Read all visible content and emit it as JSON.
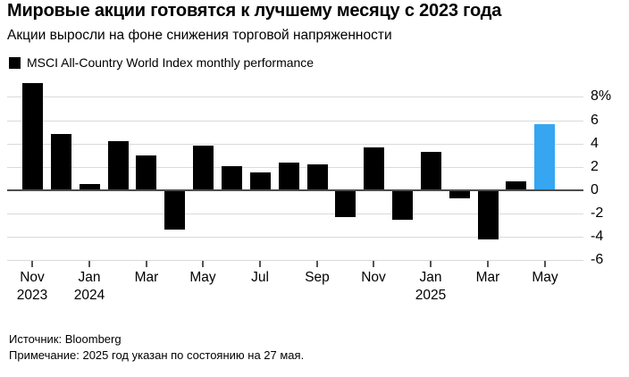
{
  "header": {
    "title": "Мировые акции готовятся к лучшему месяцу с 2023 года",
    "subtitle": "Акции выросли на фоне снижения торговой напряженности"
  },
  "legend": {
    "label": "MSCI All-Country World Index monthly performance",
    "swatch_color": "#000000"
  },
  "chart_data": {
    "type": "bar",
    "title": "MSCI All-Country World Index monthly performance",
    "unit": "%",
    "categories": [
      "Nov 2023",
      "Dec 2023",
      "Jan 2024",
      "Feb 2024",
      "Mar 2024",
      "Apr 2024",
      "May 2024",
      "Jun 2024",
      "Jul 2024",
      "Aug 2024",
      "Sep 2024",
      "Oct 2024",
      "Nov 2024",
      "Dec 2024",
      "Jan 2025",
      "Feb 2025",
      "Mar 2025",
      "Apr 2025",
      "May 2025"
    ],
    "values": [
      9.2,
      4.8,
      0.5,
      4.2,
      3.0,
      -3.4,
      3.8,
      2.1,
      1.5,
      2.4,
      2.2,
      -2.3,
      3.7,
      -2.5,
      3.3,
      -0.7,
      -4.2,
      0.8,
      5.7
    ],
    "bar_color": "#000000",
    "highlight_color": "#36A6F2",
    "highlight_index": 18,
    "ylim": [
      -6,
      9.5
    ],
    "grid": true,
    "legend_position": "top-left",
    "y_axis_side": "right",
    "y_ticks": [
      {
        "value": 8,
        "label": "8%"
      },
      {
        "value": 6,
        "label": "6"
      },
      {
        "value": 4,
        "label": "4"
      },
      {
        "value": 2,
        "label": "2"
      },
      {
        "value": 0,
        "label": "0"
      },
      {
        "value": -2,
        "label": "-2"
      },
      {
        "value": -4,
        "label": "-4"
      },
      {
        "value": -6,
        "label": "-6"
      }
    ],
    "x_ticks": [
      {
        "index": 0,
        "label": "Nov",
        "year": "2023"
      },
      {
        "index": 2,
        "label": "Jan",
        "year": "2024"
      },
      {
        "index": 4,
        "label": "Mar"
      },
      {
        "index": 6,
        "label": "May"
      },
      {
        "index": 8,
        "label": "Jul"
      },
      {
        "index": 10,
        "label": "Sep"
      },
      {
        "index": 12,
        "label": "Nov"
      },
      {
        "index": 14,
        "label": "Jan",
        "year": "2025"
      },
      {
        "index": 16,
        "label": "Mar"
      },
      {
        "index": 18,
        "label": "May"
      }
    ]
  },
  "footer": {
    "source": "Источник: Bloomberg",
    "note": "Примечание: 2025 год указан по состоянию на 27 мая."
  }
}
